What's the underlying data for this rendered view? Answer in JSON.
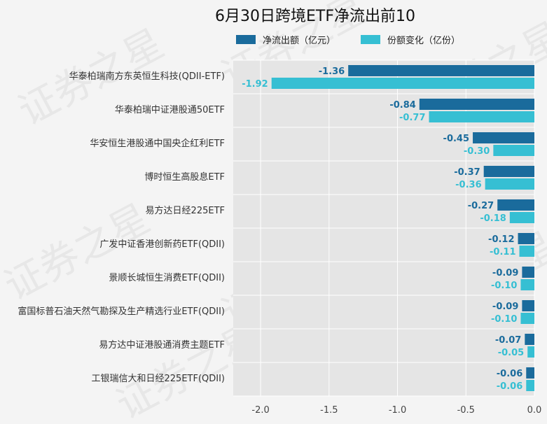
{
  "chart_data": {
    "type": "bar",
    "orientation": "horizontal",
    "title": "6月30日跨境ETF净流出前10",
    "categories": [
      "华泰柏瑞南方东英恒生科技(QDII-ETF)",
      "华泰柏瑞中证港股通50ETF",
      "华安恒生港股通中国央企红利ETF",
      "博时恒生高股息ETF",
      "易方达日经225ETF",
      "广发中证香港创新药ETF(QDII)",
      "景顺长城恒生消费ETF(QDII)",
      "富国标普石油天然气勘探及生产精选行业ETF(QDII)",
      "易方达中证港股通消费主题ETF",
      "工银瑞信大和日经225ETF(QDII)"
    ],
    "series": [
      {
        "name": "净流出额（亿元）",
        "color": "#1a6b9c",
        "values": [
          -1.36,
          -0.84,
          -0.45,
          -0.37,
          -0.27,
          -0.12,
          -0.09,
          -0.09,
          -0.07,
          -0.06
        ],
        "labels": [
          "-1.36",
          "-0.84",
          "-0.45",
          "-0.37",
          "-0.27",
          "-0.12",
          "-0.09",
          "-0.09",
          "-0.07",
          "-0.06"
        ]
      },
      {
        "name": "份额变化（亿份）",
        "color": "#36bfd3",
        "values": [
          -1.92,
          -0.77,
          -0.3,
          -0.36,
          -0.18,
          -0.11,
          -0.1,
          -0.1,
          -0.05,
          -0.06
        ],
        "labels": [
          "-1.92",
          "-0.77",
          "-0.30",
          "-0.36",
          "-0.18",
          "-0.11",
          "-0.10",
          "-0.10",
          "-0.05",
          "-0.06"
        ]
      }
    ],
    "xlim": [
      -2.2,
      0.0
    ],
    "xticks": [
      -2.0,
      -1.5,
      -1.0,
      -0.5,
      0.0
    ],
    "xtick_labels": [
      "-2.0",
      "-1.5",
      "-1.0",
      "-0.5",
      "0.0"
    ],
    "xlabel": "",
    "ylabel": "",
    "grid": true,
    "legend_position": "top",
    "plot_background": "#e5e5e5"
  },
  "watermark": "证券之星"
}
